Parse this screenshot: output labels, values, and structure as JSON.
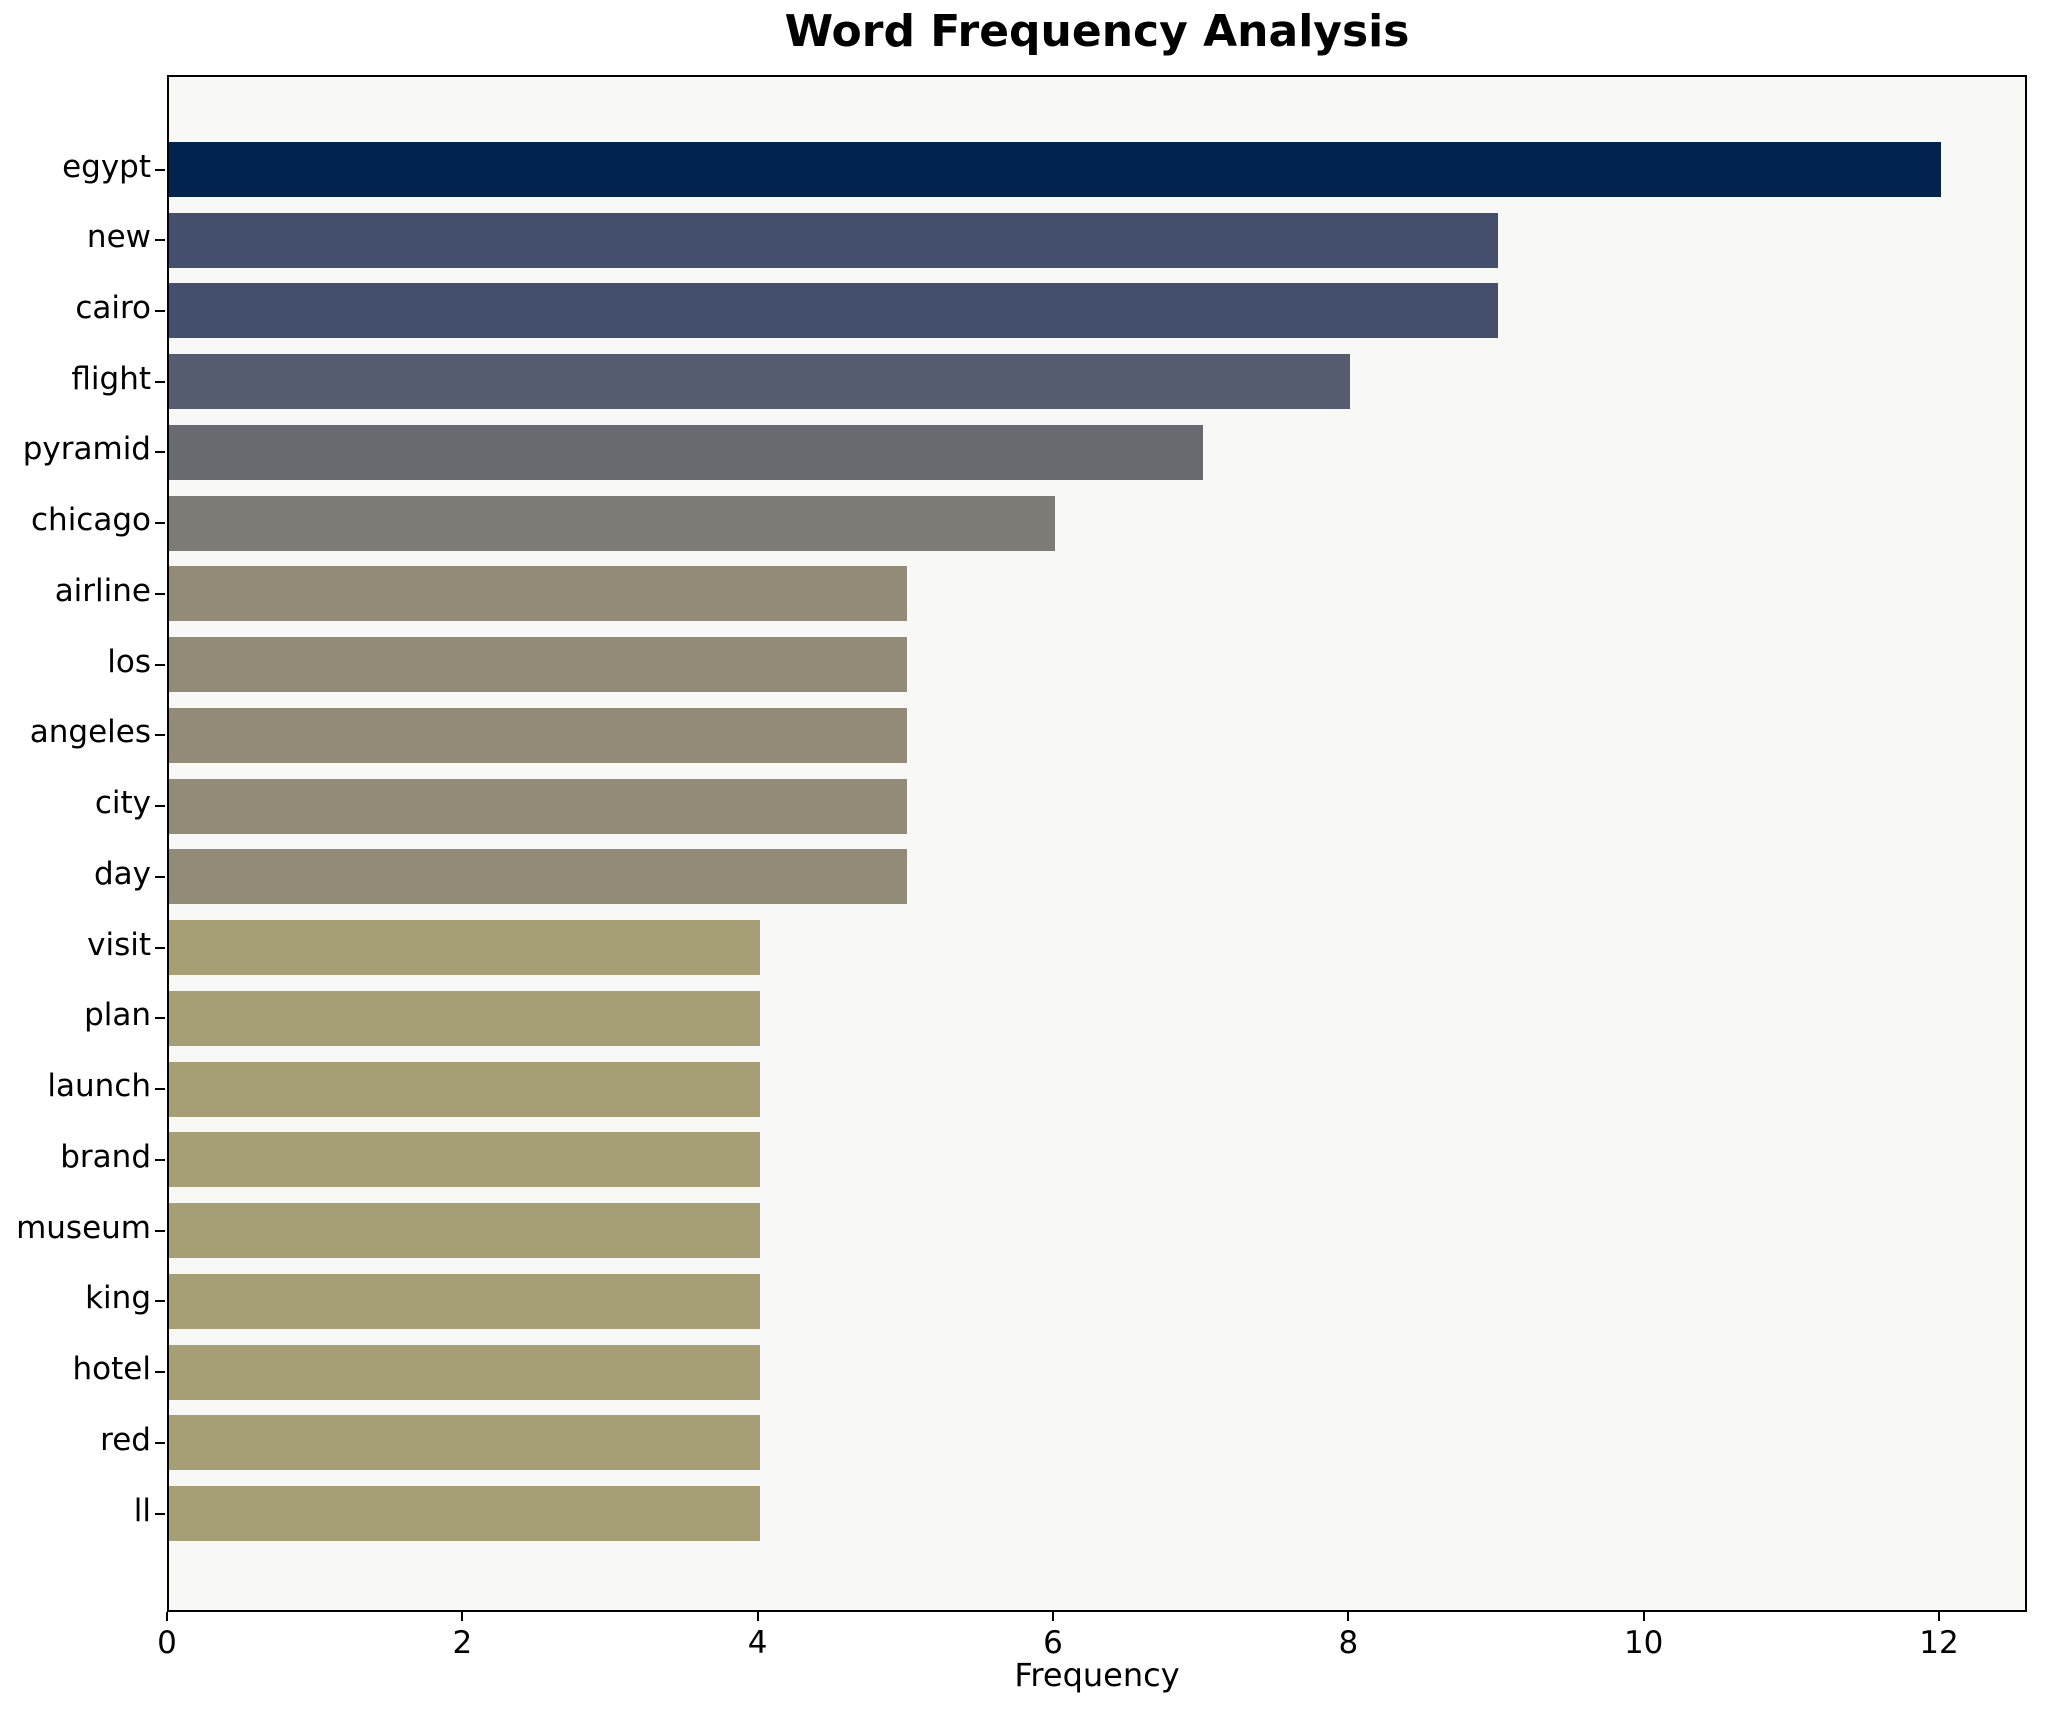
{
  "chart_data": {
    "type": "bar",
    "orientation": "horizontal",
    "title": "Word Frequency Analysis",
    "xlabel": "Frequency",
    "ylabel": "",
    "categories": [
      "egypt",
      "new",
      "cairo",
      "flight",
      "pyramid",
      "chicago",
      "airline",
      "los",
      "angeles",
      "city",
      "day",
      "visit",
      "plan",
      "launch",
      "brand",
      "museum",
      "king",
      "hotel",
      "red",
      "ll"
    ],
    "values": [
      12,
      9,
      9,
      8,
      7,
      6,
      5,
      5,
      5,
      5,
      5,
      4,
      4,
      4,
      4,
      4,
      4,
      4,
      4,
      4
    ],
    "bar_colors": [
      "#02234e",
      "#444f6d",
      "#444f6d",
      "#565c6f",
      "#696a70",
      "#7c7b75",
      "#918b78",
      "#918b78",
      "#918b78",
      "#918b78",
      "#918b78",
      "#a69e74",
      "#a69e74",
      "#a69e74",
      "#a69e74",
      "#a69e74",
      "#a69e74",
      "#a69e74",
      "#a69e74",
      "#a69e74"
    ],
    "x_ticks": [
      0,
      2,
      4,
      6,
      8,
      10,
      12
    ],
    "xlim": [
      0,
      12.6
    ],
    "grid": false,
    "legend": "none",
    "plot_bg": "#f8f8f6",
    "figure_bg": "#ffffff",
    "spine_color": "#000000"
  }
}
